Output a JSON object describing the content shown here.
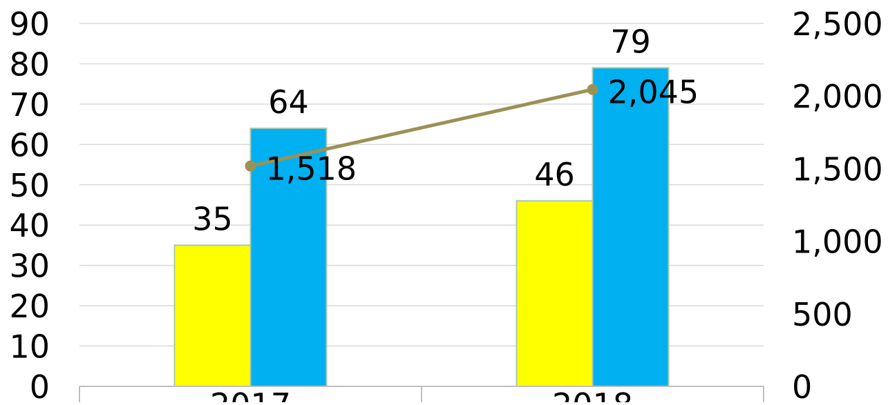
{
  "chart_data": {
    "type": "bar",
    "categories": [
      "2017",
      "2018"
    ],
    "series": [
      {
        "type": "bar",
        "axis": "left",
        "color": "#ffff00",
        "values": [
          35,
          46
        ]
      },
      {
        "type": "bar",
        "axis": "left",
        "color": "#00b0f0",
        "values": [
          64,
          79
        ]
      },
      {
        "type": "line",
        "axis": "right",
        "color": "#9c9155",
        "values": [
          1518,
          2045
        ]
      }
    ],
    "y_left": {
      "min": 0,
      "max": 90,
      "step": 10
    },
    "y_right": {
      "min": 0,
      "max": 2500,
      "step": 500
    },
    "left_tick_labels": [
      "0",
      "10",
      "20",
      "30",
      "40",
      "50",
      "60",
      "70",
      "80",
      "90"
    ],
    "right_tick_labels": [
      "0",
      "500",
      "1,000",
      "1,500",
      "2,000",
      "2,500"
    ],
    "data_labels": {
      "bar_a": [
        "35",
        "46"
      ],
      "bar_b": [
        "64",
        "79"
      ],
      "line": [
        "1,518",
        "2,045"
      ]
    },
    "grid": true,
    "legend": "none"
  }
}
